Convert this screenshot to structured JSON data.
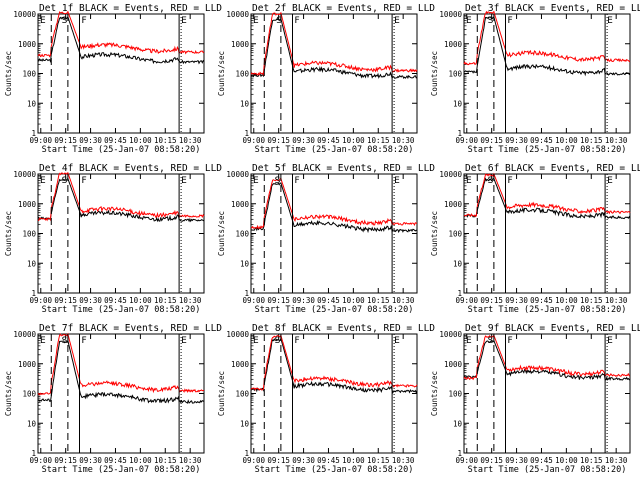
{
  "figure": {
    "background": "#ffffff",
    "colors": {
      "events": "#000000",
      "lld": "#ff0000",
      "axes": "#000000"
    },
    "layout_rows": 3,
    "layout_cols": 3
  },
  "chart_data": [
    {
      "type": "line",
      "title": "Det 1f BLACK = Events, RED = LLD",
      "xlabel": "Start Time (25-Jan-07 08:58:20)",
      "ylabel": "Counts/sec",
      "yscale": "log",
      "ylim": [
        1,
        10000
      ],
      "x_ticks": [
        "09:00",
        "09:15",
        "09:30",
        "09:45",
        "10:00",
        "10:15",
        "10:30"
      ],
      "y_ticks": [
        "1",
        "10",
        "100",
        "1000",
        "10000"
      ],
      "xlim_min": [
        0,
        100
      ],
      "region_markers": [
        {
          "label": "E",
          "x_min": 0
        },
        {
          "label": "S",
          "x_min": 13
        },
        {
          "label": "F",
          "x_min": 25
        },
        {
          "label": "E",
          "x_min": 85
        }
      ],
      "dashed_lines_x_min": [
        8,
        18,
        25
      ],
      "solid_lines_x_min": [
        25,
        85
      ],
      "series": [
        {
          "name": "Events",
          "color": "#000000",
          "base": 350,
          "peak": 8000
        },
        {
          "name": "LLD",
          "color": "#ff0000",
          "base": 750,
          "peak": 12000
        }
      ]
    },
    {
      "type": "line",
      "title": "Det 2f BLACK = Events, RED = LLD",
      "xlabel": "Start Time (25-Jan-07 08:58:20)",
      "ylabel": "Counts/sec",
      "yscale": "log",
      "ylim": [
        1,
        10000
      ],
      "x_ticks": [
        "09:00",
        "09:15",
        "09:30",
        "09:45",
        "10:00",
        "10:15",
        "10:30"
      ],
      "y_ticks": [
        "1",
        "10",
        "100",
        "1000",
        "10000"
      ],
      "xlim_min": [
        0,
        100
      ],
      "region_markers": [
        {
          "label": "E",
          "x_min": 0
        },
        {
          "label": "S",
          "x_min": 14
        },
        {
          "label": "F",
          "x_min": 25
        },
        {
          "label": "E",
          "x_min": 85
        }
      ],
      "dashed_lines_x_min": [
        8,
        18,
        25
      ],
      "solid_lines_x_min": [
        25,
        85
      ],
      "series": [
        {
          "name": "Events",
          "color": "#000000",
          "base": 110,
          "peak": 7000
        },
        {
          "name": "LLD",
          "color": "#ff0000",
          "base": 180,
          "peak": 11000
        }
      ]
    },
    {
      "type": "line",
      "title": "Det 3f BLACK = Events, RED = LLD",
      "xlabel": "Start Time (25-Jan-07 08:58:20)",
      "ylabel": "Counts/sec",
      "yscale": "log",
      "ylim": [
        1,
        10000
      ],
      "x_ticks": [
        "09:00",
        "09:15",
        "09:30",
        "09:45",
        "10:00",
        "10:15",
        "10:30"
      ],
      "y_ticks": [
        "1",
        "10",
        "100",
        "1000",
        "10000"
      ],
      "xlim_min": [
        0,
        100
      ],
      "region_markers": [
        {
          "label": "E",
          "x_min": 0
        },
        {
          "label": "S",
          "x_min": 13
        },
        {
          "label": "F",
          "x_min": 25
        },
        {
          "label": "E",
          "x_min": 85
        }
      ],
      "dashed_lines_x_min": [
        8,
        18,
        25
      ],
      "solid_lines_x_min": [
        25,
        85
      ],
      "series": [
        {
          "name": "Events",
          "color": "#000000",
          "base": 140,
          "peak": 8000
        },
        {
          "name": "LLD",
          "color": "#ff0000",
          "base": 400,
          "peak": 12000
        }
      ]
    },
    {
      "type": "line",
      "title": "Det 4f BLACK = Events, RED = LLD",
      "xlabel": "Start Time (25-Jan-07 08:58:20)",
      "ylabel": "Counts/sec",
      "yscale": "log",
      "ylim": [
        1,
        10000
      ],
      "x_ticks": [
        "09:00",
        "09:15",
        "09:30",
        "09:45",
        "10:00",
        "10:15",
        "10:30"
      ],
      "y_ticks": [
        "1",
        "10",
        "100",
        "1000",
        "10000"
      ],
      "xlim_min": [
        0,
        100
      ],
      "region_markers": [
        {
          "label": "E",
          "x_min": 0
        },
        {
          "label": "S",
          "x_min": 13
        },
        {
          "label": "F",
          "x_min": 25
        },
        {
          "label": "E",
          "x_min": 85
        }
      ],
      "dashed_lines_x_min": [
        8,
        18,
        25
      ],
      "solid_lines_x_min": [
        25,
        85
      ],
      "series": [
        {
          "name": "Events",
          "color": "#000000",
          "base": 400,
          "peak": 7000
        },
        {
          "name": "LLD",
          "color": "#ff0000",
          "base": 550,
          "peak": 11000
        }
      ]
    },
    {
      "type": "line",
      "title": "Det 5f BLACK = Events, RED = LLD",
      "xlabel": "Start Time (25-Jan-07 08:58:20)",
      "ylabel": "Counts/sec",
      "yscale": "log",
      "ylim": [
        1,
        10000
      ],
      "x_ticks": [
        "09:00",
        "09:15",
        "09:30",
        "09:45",
        "10:00",
        "10:15",
        "10:30"
      ],
      "y_ticks": [
        "1",
        "10",
        "100",
        "1000",
        "10000"
      ],
      "xlim_min": [
        0,
        100
      ],
      "region_markers": [
        {
          "label": "E",
          "x_min": 0
        },
        {
          "label": "S",
          "x_min": 13
        },
        {
          "label": "F",
          "x_min": 25
        },
        {
          "label": "E",
          "x_min": 85
        }
      ],
      "dashed_lines_x_min": [
        8,
        18,
        25
      ],
      "solid_lines_x_min": [
        25,
        85
      ],
      "series": [
        {
          "name": "Events",
          "color": "#000000",
          "base": 180,
          "peak": 5000
        },
        {
          "name": "LLD",
          "color": "#ff0000",
          "base": 300,
          "peak": 7000
        }
      ]
    },
    {
      "type": "line",
      "title": "Det 6f BLACK = Events, RED = LLD",
      "xlabel": "Start Time (25-Jan-07 08:58:20)",
      "ylabel": "Counts/sec",
      "yscale": "log",
      "ylim": [
        1,
        10000
      ],
      "x_ticks": [
        "09:00",
        "09:15",
        "09:30",
        "09:45",
        "10:00",
        "10:15",
        "10:30"
      ],
      "y_ticks": [
        "1",
        "10",
        "100",
        "1000",
        "10000"
      ],
      "xlim_min": [
        0,
        100
      ],
      "region_markers": [
        {
          "label": "E",
          "x_min": 0
        },
        {
          "label": "S",
          "x_min": 13
        },
        {
          "label": "F",
          "x_min": 25
        },
        {
          "label": "E",
          "x_min": 85
        }
      ],
      "dashed_lines_x_min": [
        8,
        18,
        25
      ],
      "solid_lines_x_min": [
        25,
        85
      ],
      "series": [
        {
          "name": "Events",
          "color": "#000000",
          "base": 500,
          "peak": 7000
        },
        {
          "name": "LLD",
          "color": "#ff0000",
          "base": 750,
          "peak": 10000
        }
      ]
    },
    {
      "type": "line",
      "title": "Det 7f BLACK = Events, RED = LLD",
      "xlabel": "Start Time (25-Jan-07 08:58:20)",
      "ylabel": "Counts/sec",
      "yscale": "log",
      "ylim": [
        1,
        10000
      ],
      "x_ticks": [
        "09:00",
        "09:15",
        "09:30",
        "09:45",
        "10:00",
        "10:15",
        "10:30"
      ],
      "y_ticks": [
        "1",
        "10",
        "100",
        "1000",
        "10000"
      ],
      "xlim_min": [
        0,
        100
      ],
      "region_markers": [
        {
          "label": "E",
          "x_min": 0
        },
        {
          "label": "S",
          "x_min": 13
        },
        {
          "label": "F",
          "x_min": 25
        },
        {
          "label": "E",
          "x_min": 85
        }
      ],
      "dashed_lines_x_min": [
        8,
        18,
        25
      ],
      "solid_lines_x_min": [
        25,
        85
      ],
      "series": [
        {
          "name": "Events",
          "color": "#000000",
          "base": 75,
          "peak": 6000
        },
        {
          "name": "LLD",
          "color": "#ff0000",
          "base": 180,
          "peak": 10000
        }
      ]
    },
    {
      "type": "line",
      "title": "Det 8f BLACK = Events, RED = LLD",
      "xlabel": "Start Time (25-Jan-07 08:58:20)",
      "ylabel": "Counts/sec",
      "yscale": "log",
      "ylim": [
        1,
        10000
      ],
      "x_ticks": [
        "09:00",
        "09:15",
        "09:30",
        "09:45",
        "10:00",
        "10:15",
        "10:30"
      ],
      "y_ticks": [
        "1",
        "10",
        "100",
        "1000",
        "10000"
      ],
      "xlim_min": [
        0,
        100
      ],
      "region_markers": [
        {
          "label": "E",
          "x_min": 0
        },
        {
          "label": "S",
          "x_min": 13
        },
        {
          "label": "F",
          "x_min": 25
        },
        {
          "label": "E",
          "x_min": 85
        }
      ],
      "dashed_lines_x_min": [
        8,
        18,
        25
      ],
      "solid_lines_x_min": [
        25,
        85
      ],
      "series": [
        {
          "name": "Events",
          "color": "#000000",
          "base": 170,
          "peak": 7000
        },
        {
          "name": "LLD",
          "color": "#ff0000",
          "base": 260,
          "peak": 9000
        }
      ]
    },
    {
      "type": "line",
      "title": "Det 9f BLACK = Events, RED = LLD",
      "xlabel": "Start Time (25-Jan-07 08:58:20)",
      "ylabel": "Counts/sec",
      "yscale": "log",
      "ylim": [
        1,
        10000
      ],
      "x_ticks": [
        "09:00",
        "09:15",
        "09:30",
        "09:45",
        "10:00",
        "10:15",
        "10:30"
      ],
      "y_ticks": [
        "1",
        "10",
        "100",
        "1000",
        "10000"
      ],
      "xlim_min": [
        0,
        100
      ],
      "region_markers": [
        {
          "label": "E",
          "x_min": 0
        },
        {
          "label": "S",
          "x_min": 13
        },
        {
          "label": "F",
          "x_min": 25
        },
        {
          "label": "E",
          "x_min": 85
        }
      ],
      "dashed_lines_x_min": [
        8,
        18,
        25
      ],
      "solid_lines_x_min": [
        25,
        85
      ],
      "series": [
        {
          "name": "Events",
          "color": "#000000",
          "base": 450,
          "peak": 6000
        },
        {
          "name": "LLD",
          "color": "#ff0000",
          "base": 600,
          "peak": 9000
        }
      ]
    }
  ]
}
